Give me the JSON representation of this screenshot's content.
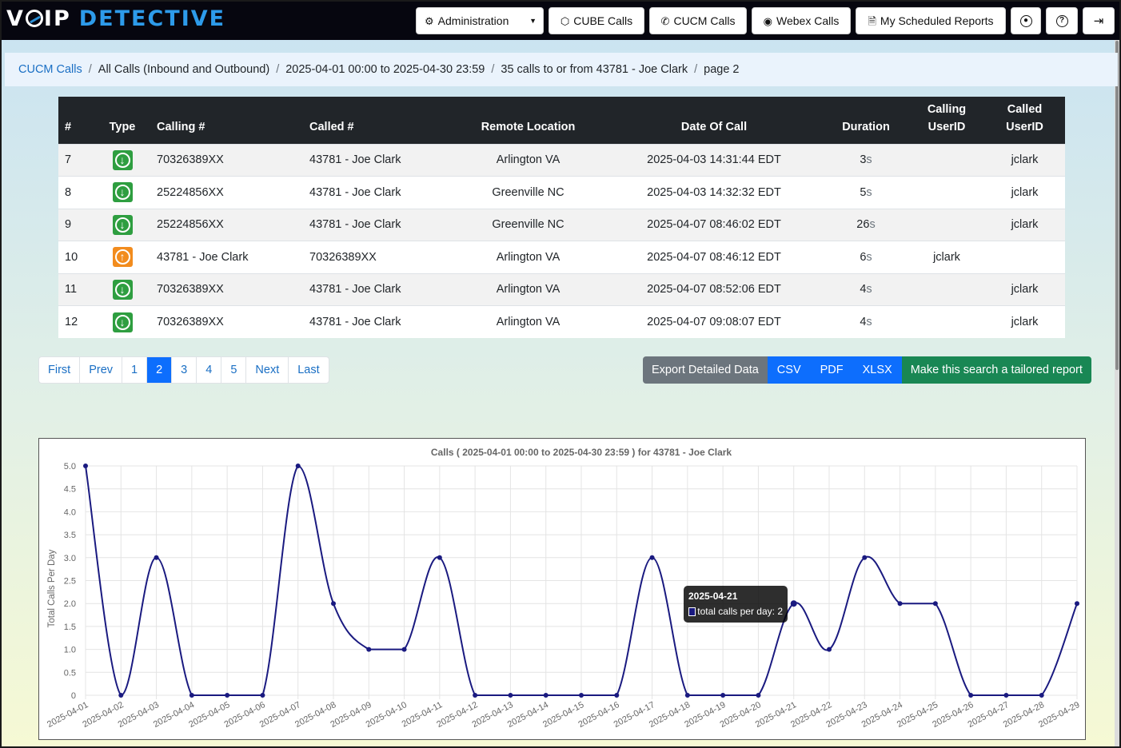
{
  "app": {
    "logo_text_left": "VoIP",
    "logo_text_right": "DETECTIVE"
  },
  "nav": {
    "administration": "Administration",
    "cube_calls": "CUBE Calls",
    "cucm_calls": "CUCM Calls",
    "webex_calls": "Webex Calls",
    "scheduled_reports": "My Scheduled Reports"
  },
  "breadcrumb": {
    "root": "CUCM Calls",
    "items": [
      "All Calls (Inbound and Outbound)",
      "2025-04-01 00:00 to 2025-04-30 23:59",
      "35 calls to or from 43781 - Joe Clark",
      "page 2"
    ],
    "separator": "/"
  },
  "table": {
    "headers": {
      "num": "#",
      "type": "Type",
      "calling": "Calling #",
      "called": "Called #",
      "remote": "Remote Location",
      "date": "Date Of Call",
      "duration": "Duration",
      "calling_uid_1": "Calling",
      "calling_uid_2": "UserID",
      "called_uid_1": "Called",
      "called_uid_2": "UserID"
    },
    "rows": [
      {
        "num": "7",
        "direction": "inbound",
        "calling": "70326389XX",
        "called": "43781 - Joe Clark",
        "remote": "Arlington VA",
        "date": "2025-04-03 14:31:44 EDT",
        "dur_num": "3",
        "dur_unit": "s",
        "calling_uid": "",
        "called_uid": "jclark"
      },
      {
        "num": "8",
        "direction": "inbound",
        "calling": "25224856XX",
        "called": "43781 - Joe Clark",
        "remote": "Greenville NC",
        "date": "2025-04-03 14:32:32 EDT",
        "dur_num": "5",
        "dur_unit": "s",
        "calling_uid": "",
        "called_uid": "jclark"
      },
      {
        "num": "9",
        "direction": "inbound",
        "calling": "25224856XX",
        "called": "43781 - Joe Clark",
        "remote": "Greenville NC",
        "date": "2025-04-07 08:46:02 EDT",
        "dur_num": "26",
        "dur_unit": "s",
        "calling_uid": "",
        "called_uid": "jclark"
      },
      {
        "num": "10",
        "direction": "outbound",
        "calling": "43781 - Joe Clark",
        "called": "70326389XX",
        "remote": "Arlington VA",
        "date": "2025-04-07 08:46:12 EDT",
        "dur_num": "6",
        "dur_unit": "s",
        "calling_uid": "jclark",
        "called_uid": ""
      },
      {
        "num": "11",
        "direction": "inbound",
        "calling": "70326389XX",
        "called": "43781 - Joe Clark",
        "remote": "Arlington VA",
        "date": "2025-04-07 08:52:06 EDT",
        "dur_num": "4",
        "dur_unit": "s",
        "calling_uid": "",
        "called_uid": "jclark"
      },
      {
        "num": "12",
        "direction": "inbound",
        "calling": "70326389XX",
        "called": "43781 - Joe Clark",
        "remote": "Arlington VA",
        "date": "2025-04-07 09:08:07 EDT",
        "dur_num": "4",
        "dur_unit": "s",
        "calling_uid": "",
        "called_uid": "jclark"
      }
    ]
  },
  "pagination": {
    "first": "First",
    "prev": "Prev",
    "pages": [
      "1",
      "2",
      "3",
      "4",
      "5"
    ],
    "current": "2",
    "next": "Next",
    "last": "Last"
  },
  "export": {
    "label": "Export Detailed Data",
    "csv": "CSV",
    "pdf": "PDF",
    "xlsx": "XLSX",
    "tailored": "Make this search a tailored report"
  },
  "colors": {
    "inbound": "#2e9e40",
    "outbound": "#f28c1e",
    "primary": "#0d6efd",
    "success": "#198754",
    "line": "#1a1a80"
  },
  "chart_data": {
    "type": "line",
    "title": "Calls ( 2025-04-01 00:00 to 2025-04-30 23:59 ) for 43781 - Joe Clark",
    "xlabel": "",
    "ylabel": "Total Calls Per Day",
    "ylim": [
      0,
      5
    ],
    "yticks": [
      "0",
      "0.5",
      "1.0",
      "1.5",
      "2.0",
      "2.5",
      "3.0",
      "3.5",
      "4.0",
      "4.5",
      "5.0"
    ],
    "grid": true,
    "categories": [
      "2025-04-01",
      "2025-04-02",
      "2025-04-03",
      "2025-04-04",
      "2025-04-05",
      "2025-04-06",
      "2025-04-07",
      "2025-04-08",
      "2025-04-09",
      "2025-04-10",
      "2025-04-11",
      "2025-04-12",
      "2025-04-13",
      "2025-04-14",
      "2025-04-15",
      "2025-04-16",
      "2025-04-17",
      "2025-04-18",
      "2025-04-19",
      "2025-04-20",
      "2025-04-21",
      "2025-04-22",
      "2025-04-23",
      "2025-04-24",
      "2025-04-25",
      "2025-04-26",
      "2025-04-27",
      "2025-04-28",
      "2025-04-29"
    ],
    "series": [
      {
        "name": "total calls per day",
        "values": [
          5,
          0,
          3,
          0,
          0,
          0,
          5,
          2,
          1,
          1,
          3,
          0,
          0,
          0,
          0,
          0,
          3,
          0,
          0,
          0,
          2,
          1,
          3,
          2,
          2,
          0,
          0,
          0,
          2
        ]
      }
    ],
    "tooltip": {
      "title": "2025-04-21",
      "label": "total calls per day: 2"
    }
  }
}
